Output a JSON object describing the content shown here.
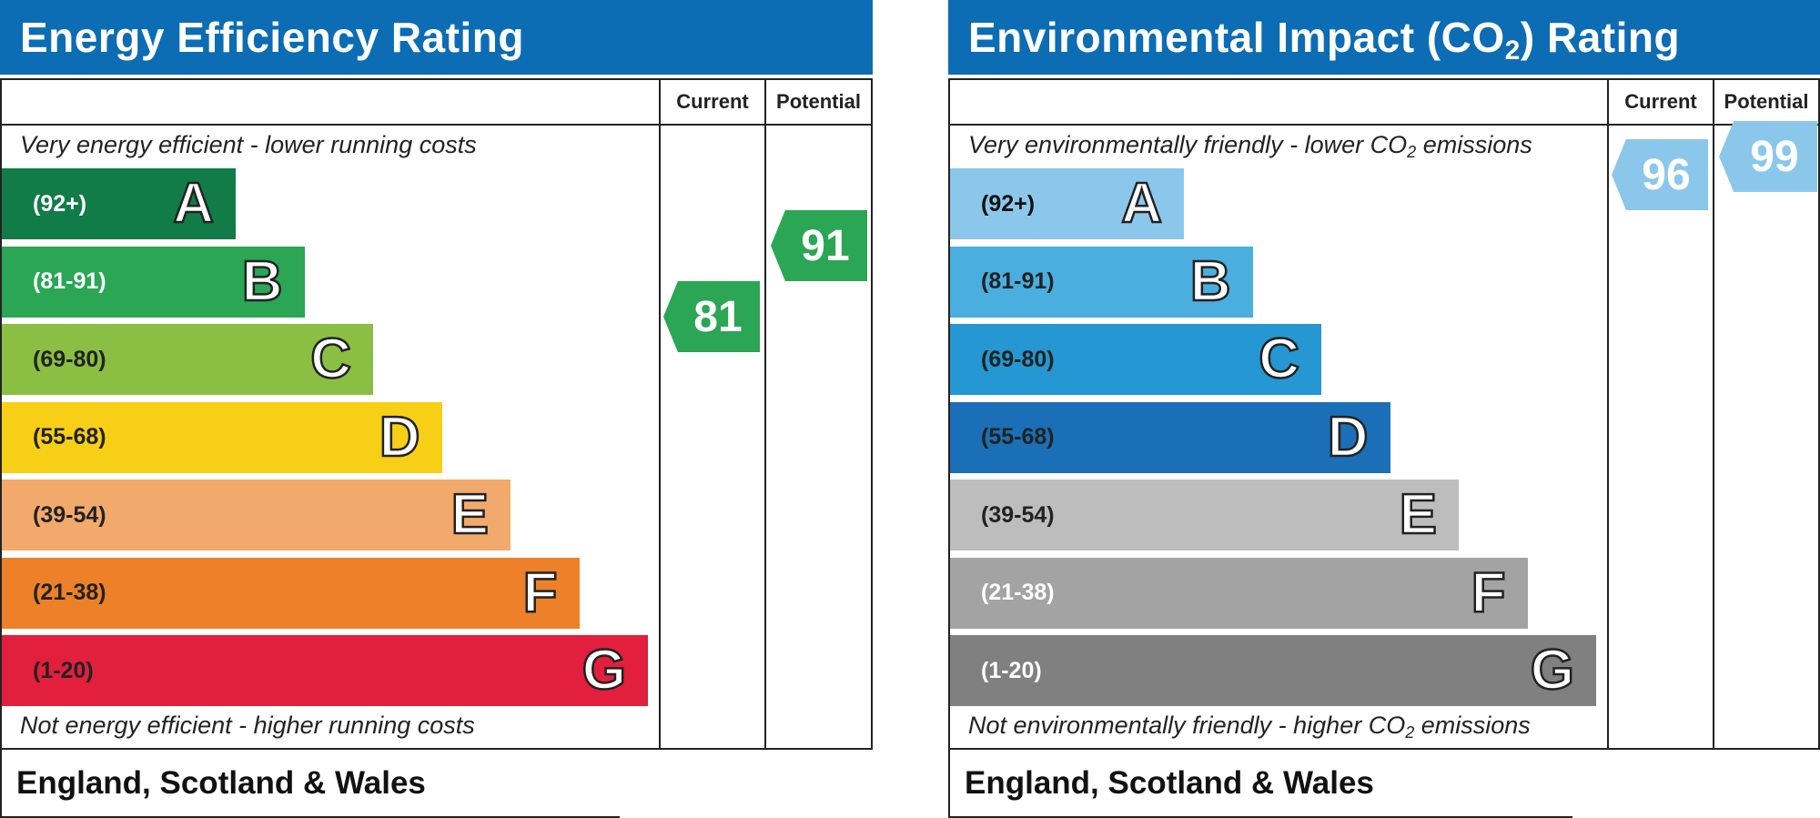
{
  "chart_data": [
    {
      "type": "bar",
      "title": "Energy Efficiency Rating",
      "columns": [
        "Current",
        "Potential"
      ],
      "top_caption": "Very energy efficient - lower running costs",
      "bottom_caption": "Not energy efficient - higher running costs",
      "footer": "England, Scotland & Wales",
      "bands": [
        {
          "range": "(92+)",
          "letter": "A",
          "color": "#127c49",
          "range_color": "#ffffff"
        },
        {
          "range": "(81-91)",
          "letter": "B",
          "color": "#2aa655",
          "range_color": "#ffffff"
        },
        {
          "range": "(69-80)",
          "letter": "C",
          "color": "#8bbf43",
          "range_color": "#222222"
        },
        {
          "range": "(55-68)",
          "letter": "D",
          "color": "#f7cf17",
          "range_color": "#222222"
        },
        {
          "range": "(39-54)",
          "letter": "E",
          "color": "#f2a96c",
          "range_color": "#222222"
        },
        {
          "range": "(21-38)",
          "letter": "F",
          "color": "#ec8129",
          "range_color": "#222222"
        },
        {
          "range": "(1-20)",
          "letter": "G",
          "color": "#e21f3c",
          "range_color": "#222222"
        }
      ],
      "current": {
        "value": "81",
        "color": "#2aa655"
      },
      "potential": {
        "value": "91",
        "color": "#2aa655"
      }
    },
    {
      "type": "bar",
      "title_main": "Environmental Impact (CO",
      "title_sub": "2",
      "title_end": ") Rating",
      "columns": [
        "Current",
        "Potential"
      ],
      "top_caption_main": "Very environmentally friendly - lower CO",
      "top_caption_sub": "2",
      "top_caption_end": " emissions",
      "bottom_caption_main": "Not environmentally friendly - higher CO",
      "bottom_caption_sub": "2",
      "bottom_caption_end": " emissions",
      "footer": "England, Scotland & Wales",
      "bands": [
        {
          "range": "(92+)",
          "letter": "A",
          "color": "#8bc7ea",
          "range_color": "#111111"
        },
        {
          "range": "(81-91)",
          "letter": "B",
          "color": "#4aaedf",
          "range_color": "#222222"
        },
        {
          "range": "(69-80)",
          "letter": "C",
          "color": "#2597d2",
          "range_color": "#222222"
        },
        {
          "range": "(55-68)",
          "letter": "D",
          "color": "#1b6fb6",
          "range_color": "#222222"
        },
        {
          "range": "(39-54)",
          "letter": "E",
          "color": "#bdbdbd",
          "range_color": "#222222"
        },
        {
          "range": "(21-38)",
          "letter": "F",
          "color": "#a3a3a3",
          "range_color": "#ffffff"
        },
        {
          "range": "(1-20)",
          "letter": "G",
          "color": "#808080",
          "range_color": "#ffffff"
        }
      ],
      "current": {
        "value": "96",
        "color": "#8bc7ea"
      },
      "potential": {
        "value": "99",
        "color": "#8bc7ea"
      }
    }
  ]
}
